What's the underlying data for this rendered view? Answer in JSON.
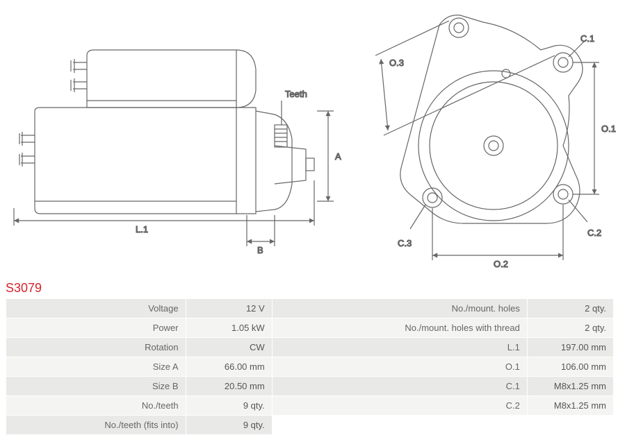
{
  "part_number": "S3079",
  "part_number_color": "#d8232a",
  "diagram": {
    "stroke": "#666666",
    "stroke_width": 1.2,
    "label_fontsize": 13,
    "left_view": {
      "labels": {
        "teeth": "Teeth",
        "A": "A",
        "B": "B",
        "L1": "L.1"
      }
    },
    "right_view": {
      "labels": {
        "O1": "O.1",
        "O2": "O.2",
        "O3": "O.3",
        "C1": "C.1",
        "C2": "C.2",
        "C3": "C.3"
      }
    }
  },
  "specs_left": [
    {
      "label": "Voltage",
      "value": "12 V"
    },
    {
      "label": "Power",
      "value": "1.05 kW"
    },
    {
      "label": "Rotation",
      "value": "CW"
    },
    {
      "label": "Size A",
      "value": "66.00 mm"
    },
    {
      "label": "Size B",
      "value": "20.50 mm"
    },
    {
      "label": "No./teeth",
      "value": "9 qty."
    },
    {
      "label": "No./teeth (fits into)",
      "value": "9 qty."
    }
  ],
  "specs_right": [
    {
      "label": "No./mount. holes",
      "value": "2 qty."
    },
    {
      "label": "No./mount. holes with thread",
      "value": "2 qty."
    },
    {
      "label": "L.1",
      "value": "197.00 mm"
    },
    {
      "label": "O.1",
      "value": "106.00 mm"
    },
    {
      "label": "C.1",
      "value": "M8x1.25 mm"
    },
    {
      "label": "C.2",
      "value": "M8x1.25 mm"
    }
  ],
  "colors": {
    "row_odd": "#e9e9e7",
    "row_even": "#f4f4f2",
    "text": "#555555",
    "border": "#ffffff"
  }
}
